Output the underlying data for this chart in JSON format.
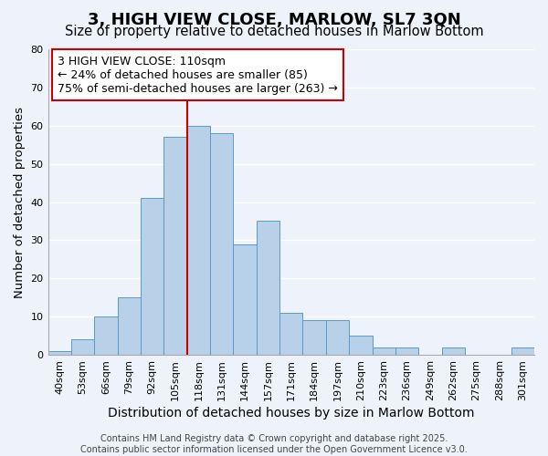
{
  "title": "3, HIGH VIEW CLOSE, MARLOW, SL7 3QN",
  "subtitle": "Size of property relative to detached houses in Marlow Bottom",
  "xlabel": "Distribution of detached houses by size in Marlow Bottom",
  "ylabel": "Number of detached properties",
  "bar_labels": [
    "40sqm",
    "53sqm",
    "66sqm",
    "79sqm",
    "92sqm",
    "105sqm",
    "118sqm",
    "131sqm",
    "144sqm",
    "157sqm",
    "171sqm",
    "184sqm",
    "197sqm",
    "210sqm",
    "223sqm",
    "236sqm",
    "249sqm",
    "262sqm",
    "275sqm",
    "288sqm",
    "301sqm"
  ],
  "bar_values": [
    1,
    4,
    10,
    15,
    41,
    57,
    60,
    58,
    29,
    35,
    11,
    9,
    9,
    5,
    2,
    2,
    0,
    2,
    0,
    0,
    2
  ],
  "bar_color": "#b8d0e8",
  "bar_edge_color": "#5a9ac8",
  "background_color": "#eef2fb",
  "grid_color": "#ffffff",
  "vline_x_index": 5,
  "vline_color": "#cc0000",
  "annotation_text": "3 HIGH VIEW CLOSE: 110sqm\n← 24% of detached houses are smaller (85)\n75% of semi-detached houses are larger (263) →",
  "annotation_box_color": "#ffffff",
  "annotation_box_edge_color": "#cc0000",
  "ylim": [
    0,
    80
  ],
  "yticks": [
    0,
    10,
    20,
    30,
    40,
    50,
    60,
    70,
    80
  ],
  "footer": "Contains HM Land Registry data © Crown copyright and database right 2025.\nContains public sector information licensed under the Open Government Licence v3.0.",
  "title_fontsize": 13,
  "subtitle_fontsize": 10.5,
  "xlabel_fontsize": 10,
  "ylabel_fontsize": 9.5,
  "tick_fontsize": 8,
  "annotation_fontsize": 9,
  "footer_fontsize": 7
}
